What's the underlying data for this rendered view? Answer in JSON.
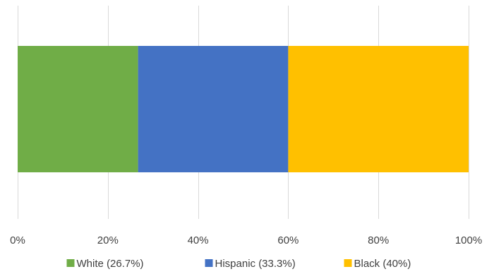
{
  "chart_data": {
    "type": "bar",
    "orientation": "horizontal",
    "stacked": "percent",
    "categories": [
      ""
    ],
    "series": [
      {
        "name": "White (26.7%)",
        "values": [
          26.7
        ],
        "color": "#70ad47"
      },
      {
        "name": "Hispanic (33.3%)",
        "values": [
          33.3
        ],
        "color": "#4472c4"
      },
      {
        "name": "Black (40%)",
        "values": [
          40
        ],
        "color": "#ffc000"
      }
    ],
    "xlim": [
      0,
      100
    ],
    "x_ticks": [
      0,
      20,
      40,
      60,
      80,
      100
    ],
    "x_tick_labels": [
      "0%",
      "20%",
      "40%",
      "60%",
      "80%",
      "100%"
    ],
    "grid": "vertical",
    "legend": "bottom"
  }
}
